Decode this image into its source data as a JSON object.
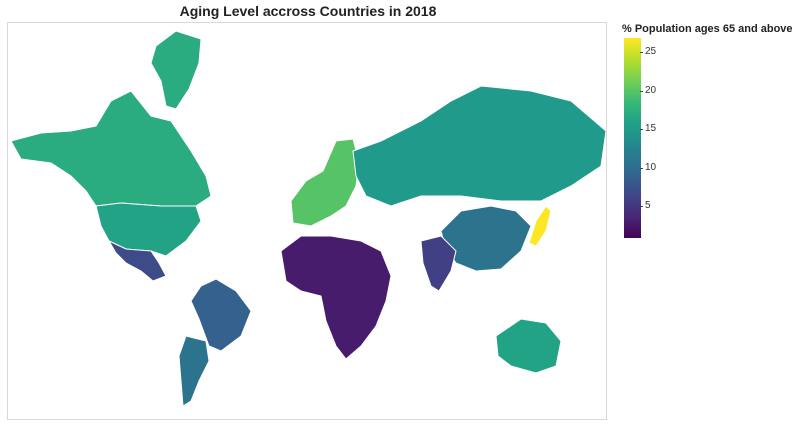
{
  "title": "Aging Level accross Countries in 2018",
  "legend": {
    "title": "% Population ages 65 and above",
    "ticks": [
      {
        "label": "25",
        "value": 25
      },
      {
        "label": "20",
        "value": 20
      },
      {
        "label": "15",
        "value": 15
      },
      {
        "label": "10",
        "value": 10
      },
      {
        "label": "5",
        "value": 5
      }
    ],
    "range": [
      1,
      27
    ],
    "colors": [
      "#440154",
      "#482878",
      "#3e4989",
      "#31688e",
      "#26828e",
      "#1f9e89",
      "#35b779",
      "#6ece58",
      "#b5de2b",
      "#fde725"
    ]
  },
  "chart_data": {
    "type": "choropleth",
    "projection": "mercator",
    "variable": "% Population ages 65 and above",
    "year": 2018,
    "regions": [
      {
        "name": "Greenland",
        "value": 17
      },
      {
        "name": "Canada",
        "value": 17
      },
      {
        "name": "United States",
        "value": 16
      },
      {
        "name": "Mexico",
        "value": 7
      },
      {
        "name": "Brazil",
        "value": 9
      },
      {
        "name": "Argentina",
        "value": 11
      },
      {
        "name": "Western Europe",
        "value": 20
      },
      {
        "name": "Russia",
        "value": 15
      },
      {
        "name": "China",
        "value": 11
      },
      {
        "name": "Japan",
        "value": 27
      },
      {
        "name": "India",
        "value": 6
      },
      {
        "name": "Africa",
        "value": 3
      },
      {
        "name": "Australia",
        "value": 16
      }
    ]
  }
}
